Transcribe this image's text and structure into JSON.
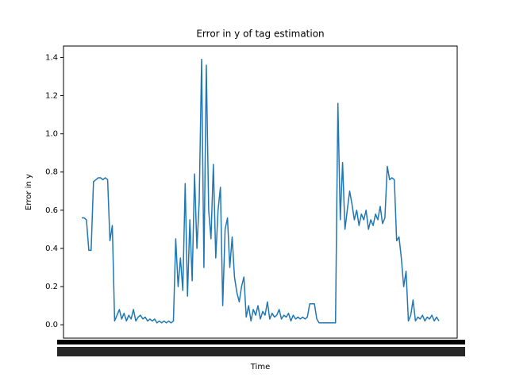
{
  "chart_data": {
    "type": "line",
    "title": "Error in y of tag estimation",
    "x_label": "Time",
    "y_label": "Error in y",
    "color": "#1f77b4",
    "ylim": [
      -0.07,
      1.46
    ],
    "yticks": [
      {
        "value": 0,
        "label": "0.0"
      },
      0.2,
      0.4,
      0.6,
      0.8,
      {
        "value": 1,
        "label": "1.0"
      },
      1.2,
      1.4
    ],
    "values": [
      0.56,
      0.56,
      0.55,
      0.39,
      0.39,
      0.75,
      0.76,
      0.77,
      0.77,
      0.76,
      0.77,
      0.76,
      0.44,
      0.52,
      0.02,
      0.05,
      0.08,
      0.03,
      0.06,
      0.02,
      0.05,
      0.03,
      0.08,
      0.02,
      0.04,
      0.05,
      0.03,
      0.04,
      0.02,
      0.03,
      0.02,
      0.03,
      0.01,
      0.02,
      0.01,
      0.02,
      0.01,
      0.02,
      0.01,
      0.02,
      0.45,
      0.2,
      0.35,
      0.18,
      0.74,
      0.15,
      0.55,
      0.23,
      0.79,
      0.4,
      0.65,
      1.39,
      0.3,
      1.36,
      0.6,
      0.45,
      0.84,
      0.35,
      0.6,
      0.72,
      0.1,
      0.5,
      0.56,
      0.3,
      0.46,
      0.25,
      0.17,
      0.12,
      0.2,
      0.25,
      0.04,
      0.1,
      0.02,
      0.08,
      0.05,
      0.1,
      0.03,
      0.07,
      0.05,
      0.12,
      0.03,
      0.06,
      0.04,
      0.05,
      0.08,
      0.03,
      0.05,
      0.04,
      0.06,
      0.02,
      0.05,
      0.03,
      0.04,
      0.03,
      0.04,
      0.03,
      0.04,
      0.11,
      0.11,
      0.11,
      0.03,
      0.01,
      0.01,
      0.01,
      0.01,
      0.01,
      0.01,
      0.01,
      0.01,
      1.16,
      0.55,
      0.85,
      0.5,
      0.6,
      0.7,
      0.63,
      0.55,
      0.6,
      0.52,
      0.58,
      0.55,
      0.6,
      0.5,
      0.55,
      0.52,
      0.58,
      0.55,
      0.62,
      0.53,
      0.56,
      0.83,
      0.76,
      0.77,
      0.76,
      0.44,
      0.46,
      0.35,
      0.2,
      0.28,
      0.02,
      0.05,
      0.13,
      0.02,
      0.04,
      0.03,
      0.05,
      0.02,
      0.04,
      0.03,
      0.05,
      0.02,
      0.04,
      0.02
    ]
  }
}
